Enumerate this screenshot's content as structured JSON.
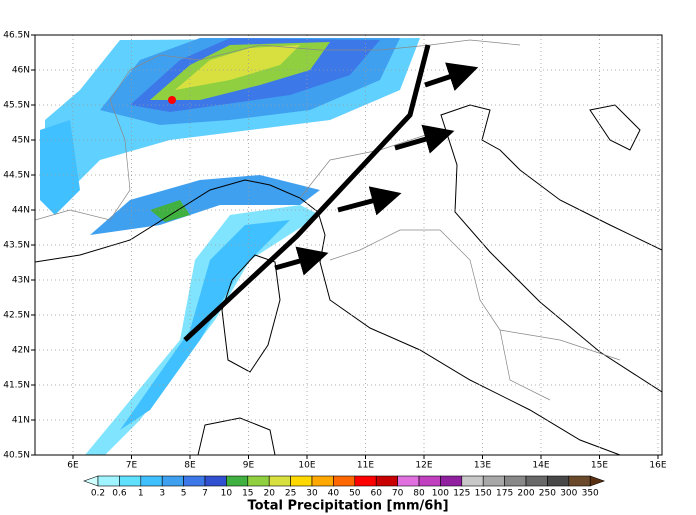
{
  "map": {
    "lon_ticks": [
      {
        "value": 6,
        "label": "6E"
      },
      {
        "value": 7,
        "label": "7E"
      },
      {
        "value": 8,
        "label": "8E"
      },
      {
        "value": 9,
        "label": "9E"
      },
      {
        "value": 10,
        "label": "10E"
      },
      {
        "value": 11,
        "label": "11E"
      },
      {
        "value": 12,
        "label": "12E"
      },
      {
        "value": 13,
        "label": "13E"
      },
      {
        "value": 14,
        "label": "14E"
      },
      {
        "value": 15,
        "label": "15E"
      },
      {
        "value": 16,
        "label": "16E"
      }
    ],
    "lat_ticks": [
      {
        "value": 46.5,
        "label": "46.5N"
      },
      {
        "value": 46,
        "label": "46N"
      },
      {
        "value": 45.5,
        "label": "45.5N"
      },
      {
        "value": 45,
        "label": "45N"
      },
      {
        "value": 44.5,
        "label": "44.5N"
      },
      {
        "value": 44,
        "label": "44N"
      },
      {
        "value": 43.5,
        "label": "43.5N"
      },
      {
        "value": 43,
        "label": "43N"
      },
      {
        "value": 42.5,
        "label": "42.5N"
      },
      {
        "value": 42,
        "label": "42N"
      },
      {
        "value": 41.5,
        "label": "41.5N"
      },
      {
        "value": 41,
        "label": "41N"
      },
      {
        "value": 40.5,
        "label": "40.5N"
      }
    ],
    "colorbar": {
      "title": "Total Precipitation [mm/6h]",
      "levels": [
        0.2,
        0.6,
        1,
        3,
        5,
        7,
        10,
        15,
        20,
        25,
        30,
        40,
        50,
        60,
        70,
        80,
        100,
        125,
        150,
        175,
        200,
        250,
        300,
        350
      ],
      "colors": [
        "#d0ffff",
        "#a0f4ff",
        "#60e0ff",
        "#40c0ff",
        "#40a0f0",
        "#3c78e8",
        "#3050d0",
        "#40b040",
        "#90d040",
        "#d8e040",
        "#ffd800",
        "#ffa800",
        "#ff6800",
        "#ff0000",
        "#c80000",
        "#e070e0",
        "#c040c0",
        "#9020a0",
        "#c8c8c8",
        "#a8a8a8",
        "#888888",
        "#686868",
        "#484848",
        "#6a4a2a",
        "#5a3010"
      ]
    }
  }
}
